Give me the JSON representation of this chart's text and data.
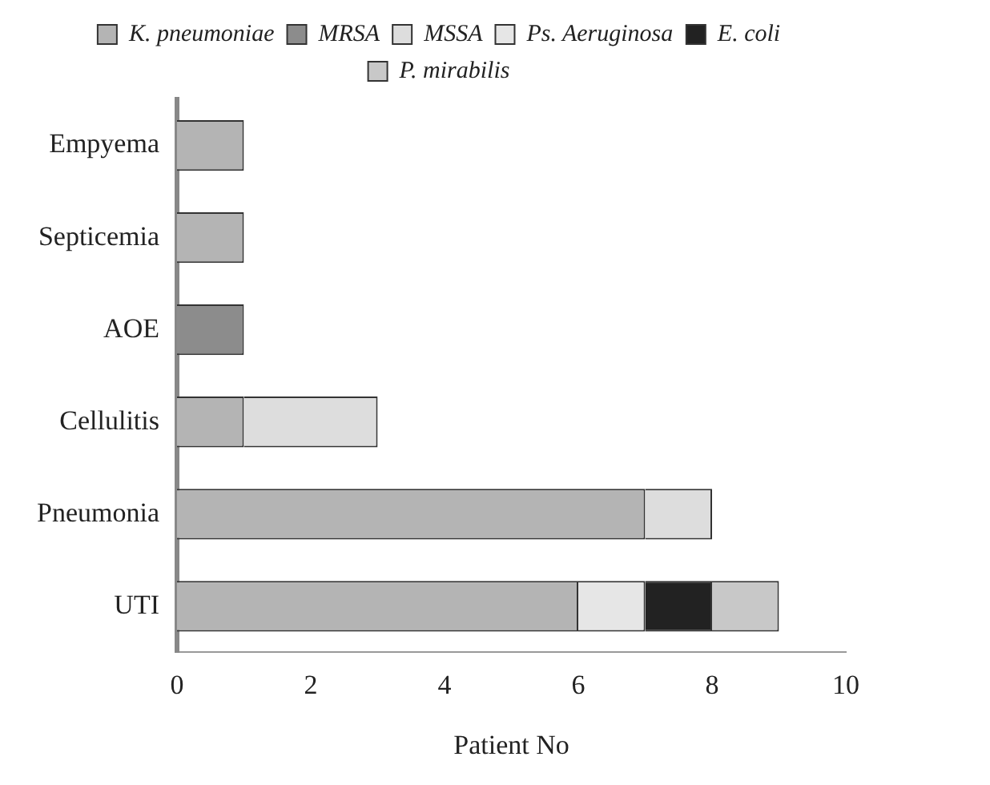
{
  "chart_data": {
    "type": "bar",
    "orientation": "horizontal",
    "stacked": true,
    "xlabel": "Patient No",
    "categories": [
      "Empyema",
      "Septicemia",
      "AOE",
      "Cellulitis",
      "Pneumonia",
      "UTI"
    ],
    "series": [
      {
        "name": "K. pneumoniae",
        "color": "#b4b4b4",
        "values": [
          1,
          1,
          0,
          1,
          7,
          6
        ]
      },
      {
        "name": "MRSA",
        "color": "#8c8c8c",
        "values": [
          0,
          0,
          1,
          0,
          0,
          0
        ]
      },
      {
        "name": "MSSA",
        "color": "#dddddd",
        "values": [
          0,
          0,
          0,
          2,
          1,
          0
        ]
      },
      {
        "name": "Ps. Aeruginosa",
        "color": "#e6e6e6",
        "values": [
          0,
          0,
          0,
          0,
          0,
          1
        ]
      },
      {
        "name": "E. coli",
        "color": "#222222",
        "values": [
          0,
          0,
          0,
          0,
          0,
          1
        ]
      },
      {
        "name": "P. mirabilis",
        "color": "#c8c8c8",
        "values": [
          0,
          0,
          0,
          0,
          0,
          1
        ]
      }
    ],
    "xlim": [
      0,
      10
    ],
    "xticks": [
      0,
      2,
      4,
      6,
      8,
      10
    ],
    "legend": "top"
  }
}
